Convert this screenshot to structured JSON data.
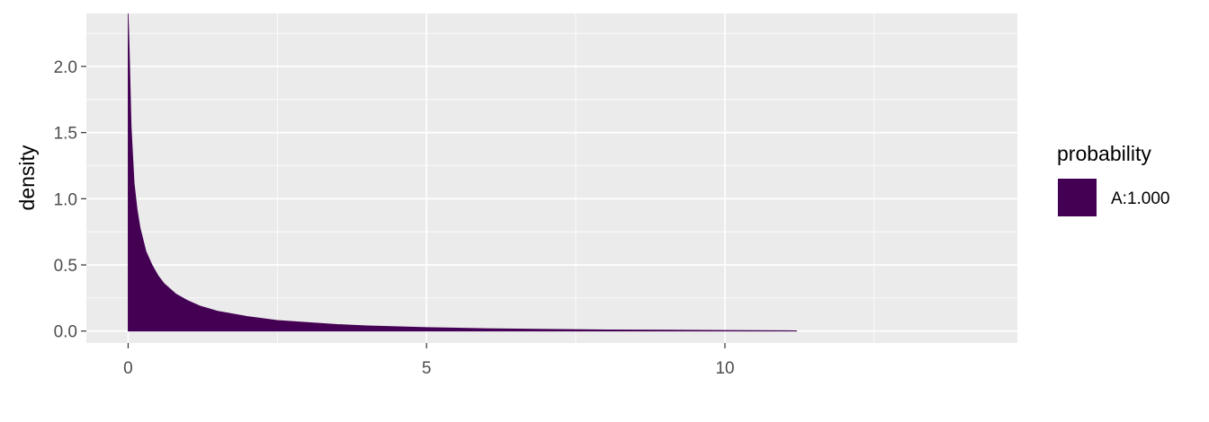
{
  "chart_data": {
    "type": "area",
    "title": "",
    "xlabel": "",
    "ylabel": "density",
    "xlim": [
      -0.7,
      14.9
    ],
    "ylim": [
      -0.09,
      2.4
    ],
    "x_ticks": [
      0,
      5,
      10
    ],
    "x_tick_labels": [
      "0",
      "5",
      "10"
    ],
    "y_ticks": [
      0.0,
      0.5,
      1.0,
      1.5,
      2.0
    ],
    "y_tick_labels": [
      "0.0",
      "0.5",
      "1.0",
      "1.5",
      "2.0"
    ],
    "grid": true,
    "legend": {
      "title": "probability",
      "position": "right"
    },
    "series": [
      {
        "name": "A:1.000",
        "color": "#440154",
        "x": [
          0.0,
          0.02,
          0.05,
          0.1,
          0.15,
          0.2,
          0.3,
          0.4,
          0.5,
          0.6,
          0.8,
          1.0,
          1.2,
          1.5,
          2.0,
          2.5,
          3.0,
          3.5,
          4.0,
          5.0,
          6.0,
          7.0,
          8.0,
          9.0,
          10.0,
          11.0,
          11.2
        ],
        "y": [
          2.4,
          2.1,
          1.55,
          1.12,
          0.92,
          0.78,
          0.6,
          0.5,
          0.42,
          0.36,
          0.28,
          0.23,
          0.19,
          0.15,
          0.11,
          0.08,
          0.065,
          0.05,
          0.04,
          0.027,
          0.018,
          0.013,
          0.009,
          0.007,
          0.005,
          0.003,
          0.002
        ]
      }
    ]
  }
}
